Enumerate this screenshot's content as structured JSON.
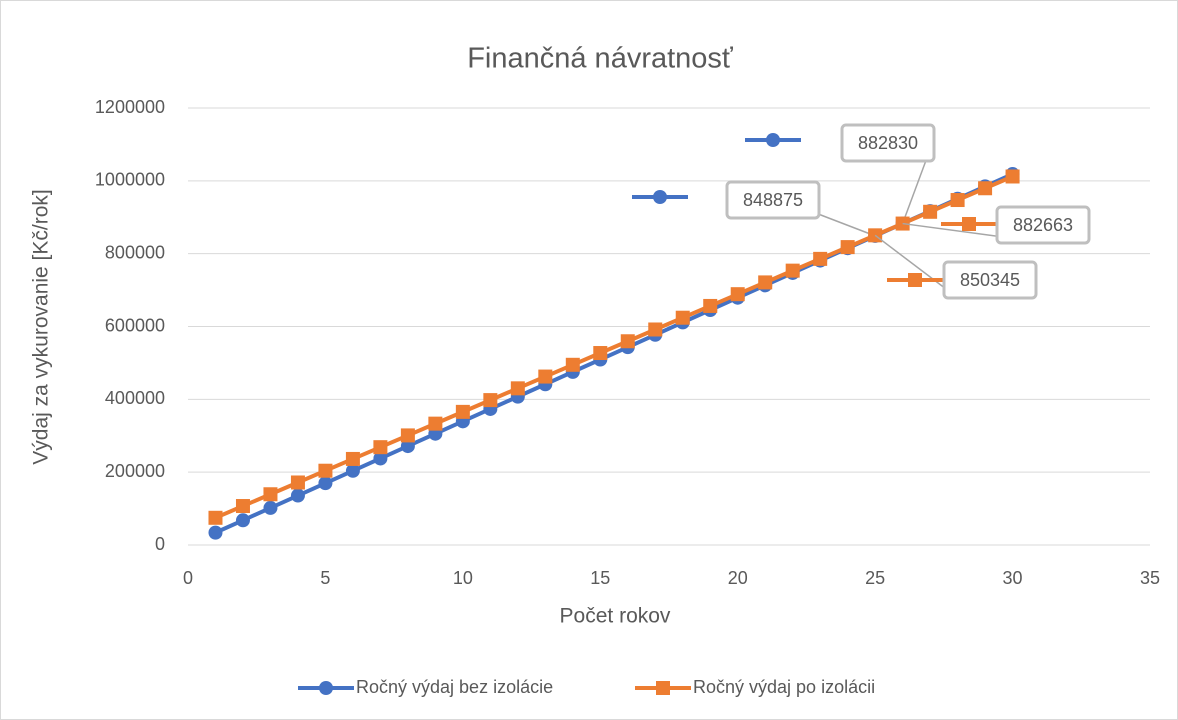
{
  "chart_data": {
    "type": "line",
    "title": "Finančná návratnosť",
    "x_label": "Počet rokov",
    "y_label": "Výdaj za vykurovanie [Kč/rok]",
    "x": [
      1,
      2,
      3,
      4,
      5,
      6,
      7,
      8,
      9,
      10,
      11,
      12,
      13,
      14,
      15,
      16,
      17,
      18,
      19,
      20,
      21,
      22,
      23,
      24,
      25,
      26,
      27,
      28,
      29,
      30
    ],
    "series": [
      {
        "name": "Ročný výdaj bez izolácie",
        "color": "#4472c4",
        "marker": "circle",
        "labeled_indices": [
          24,
          25
        ],
        "values": [
          33955,
          67910,
          101865,
          135820,
          169775,
          203730,
          237685,
          271640,
          305595,
          339550,
          373505,
          407460,
          441415,
          475370,
          509325,
          543280,
          577235,
          611190,
          645145,
          679100,
          713055,
          747010,
          780965,
          814920,
          848875,
          882830,
          916785,
          950740,
          984695,
          1018650
        ]
      },
      {
        "name": "Ročný výdaj po izolácii",
        "color": "#ed7d31",
        "marker": "square",
        "labeled_indices": [
          24,
          25
        ],
        "values": [
          74713,
          107031,
          139349,
          171667,
          203985,
          236303,
          268621,
          300939,
          333257,
          365575,
          397893,
          430211,
          462529,
          494847,
          527165,
          559483,
          591801,
          624119,
          656437,
          688755,
          721073,
          753391,
          785709,
          818027,
          850345,
          882663,
          914981,
          947299,
          979617,
          1011935
        ]
      }
    ],
    "xlim": [
      0,
      35
    ],
    "xticks": [
      0,
      5,
      10,
      15,
      20,
      25,
      30,
      35
    ],
    "ylim": [
      0,
      1200000
    ],
    "yticks": [
      0,
      200000,
      400000,
      600000,
      800000,
      1000000,
      1200000
    ],
    "grid": true,
    "legend": "bottom"
  }
}
